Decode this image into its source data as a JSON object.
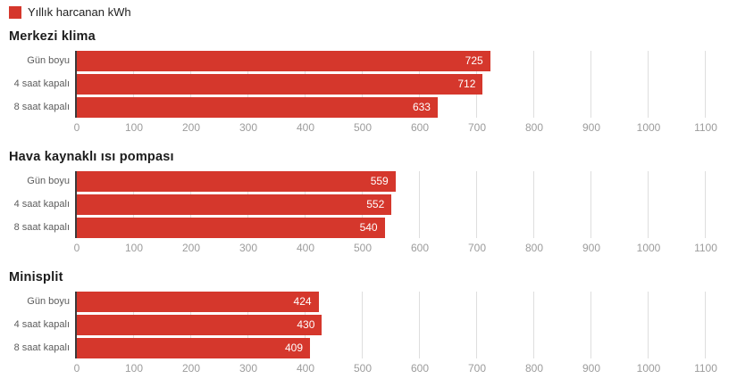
{
  "legend": {
    "label": "Yıllık harcanan kWh"
  },
  "colors": {
    "bar": "#d5372c",
    "axis_line": "#3b3b3b",
    "gridline": "#dedede",
    "tick_label": "#9c9c9c",
    "category_label": "#5c5c5c",
    "title": "#1c1c1c",
    "value_label": "#ffffff",
    "background": "#ffffff"
  },
  "chart_data": {
    "type": "bar",
    "orientation": "horizontal",
    "legend_label": "Yıllık harcanan kWh",
    "unit": "kWh",
    "categories": [
      "Gün boyu",
      "4 saat kapalı",
      "8 saat kapalı"
    ],
    "axis_ticks": [
      0,
      100,
      200,
      300,
      400,
      500,
      600,
      700,
      800,
      900,
      1000,
      1100
    ],
    "xlim": [
      0,
      1100
    ],
    "grid": true,
    "legend_position": "top-left",
    "groups": [
      {
        "title": "Merkezi klima",
        "values": [
          725,
          712,
          633
        ]
      },
      {
        "title": "Hava kaynaklı ısı pompası",
        "values": [
          559,
          552,
          540
        ]
      },
      {
        "title": "Minisplit",
        "values": [
          424,
          430,
          409
        ]
      }
    ]
  }
}
